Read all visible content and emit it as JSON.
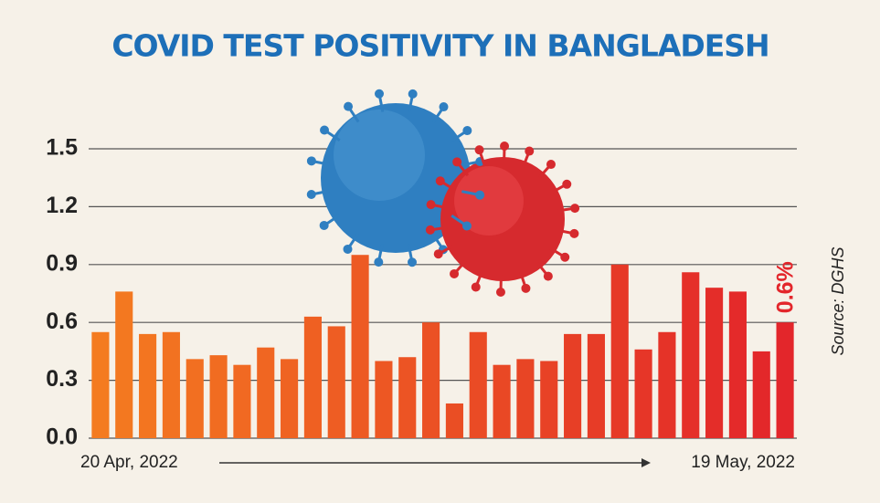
{
  "chart_data": {
    "type": "bar",
    "title": "COVID TEST POSITIVITY IN BANGLADESH",
    "categories": [
      "20 Apr, 2022",
      null,
      null,
      null,
      null,
      null,
      null,
      null,
      null,
      null,
      null,
      null,
      null,
      null,
      null,
      null,
      null,
      null,
      null,
      null,
      null,
      null,
      null,
      null,
      null,
      null,
      null,
      null,
      null,
      "19 May, 2022"
    ],
    "values": [
      0.55,
      0.76,
      0.54,
      0.55,
      0.41,
      0.43,
      0.38,
      0.47,
      0.41,
      0.63,
      0.58,
      0.95,
      0.4,
      0.42,
      0.6,
      0.18,
      0.55,
      0.38,
      0.41,
      0.4,
      0.54,
      0.54,
      0.9,
      0.46,
      0.55,
      0.86,
      0.78,
      0.76,
      0.45,
      0.6
    ],
    "value_labels": [
      null,
      null,
      null,
      null,
      null,
      null,
      null,
      null,
      null,
      null,
      null,
      null,
      null,
      null,
      null,
      null,
      null,
      null,
      null,
      null,
      null,
      null,
      null,
      null,
      null,
      null,
      null,
      null,
      null,
      "0.6%"
    ],
    "colors": [
      "#f47b20",
      "#f37820",
      "#f37520",
      "#f27221",
      "#f26f21",
      "#f16c21",
      "#f16922",
      "#f06622",
      "#ef6322",
      "#ef6022",
      "#ee5d23",
      "#ed5a23",
      "#ed5723",
      "#ec5424",
      "#eb5124",
      "#ea4e24",
      "#ea4b25",
      "#e94825",
      "#e84525",
      "#e84226",
      "#e73f26",
      "#e73c27",
      "#e63927",
      "#e63628",
      "#e53328",
      "#e53029",
      "#e42d29",
      "#e42a2a",
      "#e3282a",
      "#e3262b"
    ],
    "ylim": [
      0,
      1.5
    ],
    "yticks": [
      {
        "value": 0,
        "label": "0.0"
      },
      0.3,
      0.6,
      0.9,
      1.2,
      1.5
    ],
    "grid": true,
    "source": "Source: DGHS"
  }
}
